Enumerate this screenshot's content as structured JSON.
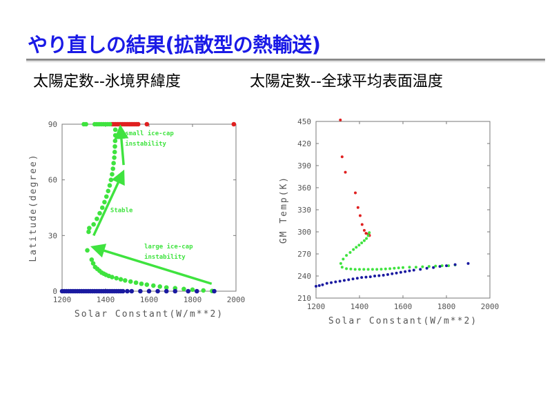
{
  "slide": {
    "title": "やり直しの結果(拡散型の熱輸送)",
    "subtitle_left": "太陽定数--氷境界緯度",
    "subtitle_right": "太陽定数--全球平均表面温度"
  },
  "colors": {
    "title": "#1a1ae6",
    "red": "#e02020",
    "green": "#3fe33f",
    "blue": "#1a1aa0"
  },
  "chart_data": [
    {
      "type": "scatter",
      "xlabel": "Solar Constant(W/m**2)",
      "ylabel": "Latitude(degree)",
      "xlim": [
        1200,
        2000
      ],
      "ylim": [
        0,
        90
      ],
      "xticks": [
        "1200",
        "1400",
        "1600",
        "1800",
        "2000"
      ],
      "yticks": [
        "0",
        "30",
        "60",
        "90"
      ],
      "annotations": [
        "small ice-cap",
        "instability",
        "Stable",
        "large ice-cap",
        "instability"
      ],
      "series": [
        {
          "color": "red",
          "points": [
            [
              1430,
              90
            ],
            [
              1438,
              90
            ],
            [
              1446,
              90
            ],
            [
              1454,
              90
            ],
            [
              1462,
              90
            ],
            [
              1470,
              90
            ],
            [
              1478,
              90
            ],
            [
              1486,
              90
            ],
            [
              1494,
              90
            ],
            [
              1502,
              90
            ],
            [
              1510,
              90
            ],
            [
              1518,
              90
            ],
            [
              1526,
              90
            ],
            [
              1534,
              90
            ],
            [
              1542,
              90
            ],
            [
              1550,
              90
            ],
            [
              1590,
              90
            ],
            [
              1990,
              90
            ]
          ]
        },
        {
          "color": "green",
          "points": [
            [
              1300,
              90
            ],
            [
              1310,
              90
            ],
            [
              1350,
              90
            ],
            [
              1360,
              90
            ],
            [
              1370,
              90
            ],
            [
              1380,
              90
            ],
            [
              1390,
              90
            ],
            [
              1400,
              90
            ],
            [
              1410,
              90
            ],
            [
              1420,
              90
            ],
            [
              1445,
              87
            ],
            [
              1445,
              84
            ],
            [
              1444,
              81
            ],
            [
              1443,
              78
            ],
            [
              1442,
              75
            ],
            [
              1440,
              72
            ],
            [
              1437,
              69
            ],
            [
              1434,
              66
            ],
            [
              1430,
              63
            ],
            [
              1425,
              60
            ],
            [
              1419,
              57
            ],
            [
              1412,
              54
            ],
            [
              1404,
              51
            ],
            [
              1395,
              48
            ],
            [
              1385,
              45
            ],
            [
              1373,
              42
            ],
            [
              1360,
              39
            ],
            [
              1345,
              36
            ],
            [
              1325,
              34
            ],
            [
              1322,
              32
            ],
            [
              1316,
              22
            ],
            [
              1336,
              17
            ],
            [
              1343,
              15
            ],
            [
              1352,
              13
            ],
            [
              1362,
              12
            ],
            [
              1372,
              11
            ],
            [
              1382,
              10
            ],
            [
              1392,
              9.4
            ],
            [
              1402,
              8.8
            ],
            [
              1415,
              8.2
            ],
            [
              1430,
              7.6
            ],
            [
              1450,
              7
            ],
            [
              1470,
              6.4
            ],
            [
              1490,
              5.8
            ],
            [
              1515,
              5.2
            ],
            [
              1540,
              4.6
            ],
            [
              1565,
              4
            ],
            [
              1590,
              3.5
            ],
            [
              1620,
              3
            ],
            [
              1650,
              2.5
            ],
            [
              1680,
              2
            ],
            [
              1720,
              1.6
            ],
            [
              1760,
              1.2
            ],
            [
              1800,
              0.8
            ],
            [
              1850,
              0.4
            ],
            [
              1890,
              0.1
            ]
          ]
        },
        {
          "color": "blue",
          "points": [
            [
              1200,
              0
            ],
            [
              1210,
              0
            ],
            [
              1220,
              0
            ],
            [
              1230,
              0
            ],
            [
              1240,
              0
            ],
            [
              1250,
              0
            ],
            [
              1260,
              0
            ],
            [
              1270,
              0
            ],
            [
              1280,
              0
            ],
            [
              1290,
              0
            ],
            [
              1300,
              0
            ],
            [
              1310,
              0
            ],
            [
              1320,
              0
            ],
            [
              1330,
              0
            ],
            [
              1340,
              0
            ],
            [
              1350,
              0
            ],
            [
              1360,
              0
            ],
            [
              1370,
              0
            ],
            [
              1380,
              0
            ],
            [
              1390,
              0
            ],
            [
              1400,
              0
            ],
            [
              1410,
              0
            ],
            [
              1420,
              0
            ],
            [
              1430,
              0
            ],
            [
              1440,
              0
            ],
            [
              1450,
              0
            ],
            [
              1460,
              0
            ],
            [
              1470,
              0
            ],
            [
              1480,
              0
            ],
            [
              1500,
              0
            ],
            [
              1520,
              0
            ],
            [
              1560,
              0
            ],
            [
              1600,
              0
            ],
            [
              1640,
              0
            ],
            [
              1680,
              0
            ],
            [
              1720,
              0
            ],
            [
              1780,
              0
            ],
            [
              1820,
              0
            ],
            [
              1900,
              0
            ]
          ]
        }
      ]
    },
    {
      "type": "scatter",
      "xlabel": "Solar Constant(W/m**2)",
      "ylabel": "GM Temp(K)",
      "xlim": [
        1200,
        2000
      ],
      "ylim": [
        210,
        450
      ],
      "xticks": [
        "1200",
        "1400",
        "1600",
        "1800",
        "2000"
      ],
      "yticks": [
        "210",
        "240",
        "270",
        "300",
        "330",
        "360",
        "390",
        "420",
        "450"
      ],
      "series": [
        {
          "color": "red",
          "points": [
            [
              1312,
              452
            ],
            [
              1320,
              402
            ],
            [
              1335,
              381
            ],
            [
              1381,
              353
            ],
            [
              1393,
              333
            ],
            [
              1403,
              322
            ],
            [
              1412,
              310
            ],
            [
              1422,
              302
            ],
            [
              1430,
              298
            ],
            [
              1440,
              297
            ],
            [
              1444,
              296
            ],
            [
              1446,
              295
            ]
          ]
        },
        {
          "color": "green",
          "points": [
            [
              1445,
              299
            ],
            [
              1440,
              295
            ],
            [
              1432,
              291
            ],
            [
              1422,
              288
            ],
            [
              1410,
              285
            ],
            [
              1398,
              282
            ],
            [
              1385,
              279
            ],
            [
              1372,
              276
            ],
            [
              1357,
              272
            ],
            [
              1340,
              268
            ],
            [
              1325,
              263
            ],
            [
              1314,
              257
            ],
            [
              1320,
              252
            ],
            [
              1340,
              250
            ],
            [
              1360,
              249.5
            ],
            [
              1380,
              249
            ],
            [
              1400,
              249
            ],
            [
              1420,
              249
            ],
            [
              1440,
              249
            ],
            [
              1460,
              249
            ],
            [
              1480,
              249
            ],
            [
              1500,
              249.3
            ],
            [
              1520,
              249.6
            ],
            [
              1540,
              250
            ],
            [
              1560,
              250.5
            ],
            [
              1580,
              251
            ],
            [
              1600,
              251.5
            ],
            [
              1630,
              252
            ],
            [
              1660,
              252
            ],
            [
              1690,
              252.5
            ],
            [
              1720,
              253
            ],
            [
              1750,
              253.5
            ],
            [
              1780,
              254
            ],
            [
              1810,
              254
            ],
            [
              1840,
              255
            ]
          ]
        },
        {
          "color": "blue",
          "points": [
            [
              1200,
              226
            ],
            [
              1215,
              227
            ],
            [
              1230,
              228
            ],
            [
              1250,
              230
            ],
            [
              1270,
              231
            ],
            [
              1290,
              232
            ],
            [
              1310,
              233
            ],
            [
              1330,
              234
            ],
            [
              1350,
              235
            ],
            [
              1370,
              236
            ],
            [
              1390,
              237
            ],
            [
              1410,
              238
            ],
            [
              1430,
              238.5
            ],
            [
              1450,
              239
            ],
            [
              1470,
              240
            ],
            [
              1490,
              240.5
            ],
            [
              1510,
              241
            ],
            [
              1530,
              242
            ],
            [
              1550,
              243
            ],
            [
              1570,
              244
            ],
            [
              1590,
              245
            ],
            [
              1610,
              246
            ],
            [
              1630,
              247
            ],
            [
              1650,
              248
            ],
            [
              1680,
              249
            ],
            [
              1710,
              250.5
            ],
            [
              1740,
              251.5
            ],
            [
              1770,
              253
            ],
            [
              1800,
              254
            ],
            [
              1840,
              255.5
            ],
            [
              1900,
              257
            ]
          ]
        }
      ]
    }
  ]
}
